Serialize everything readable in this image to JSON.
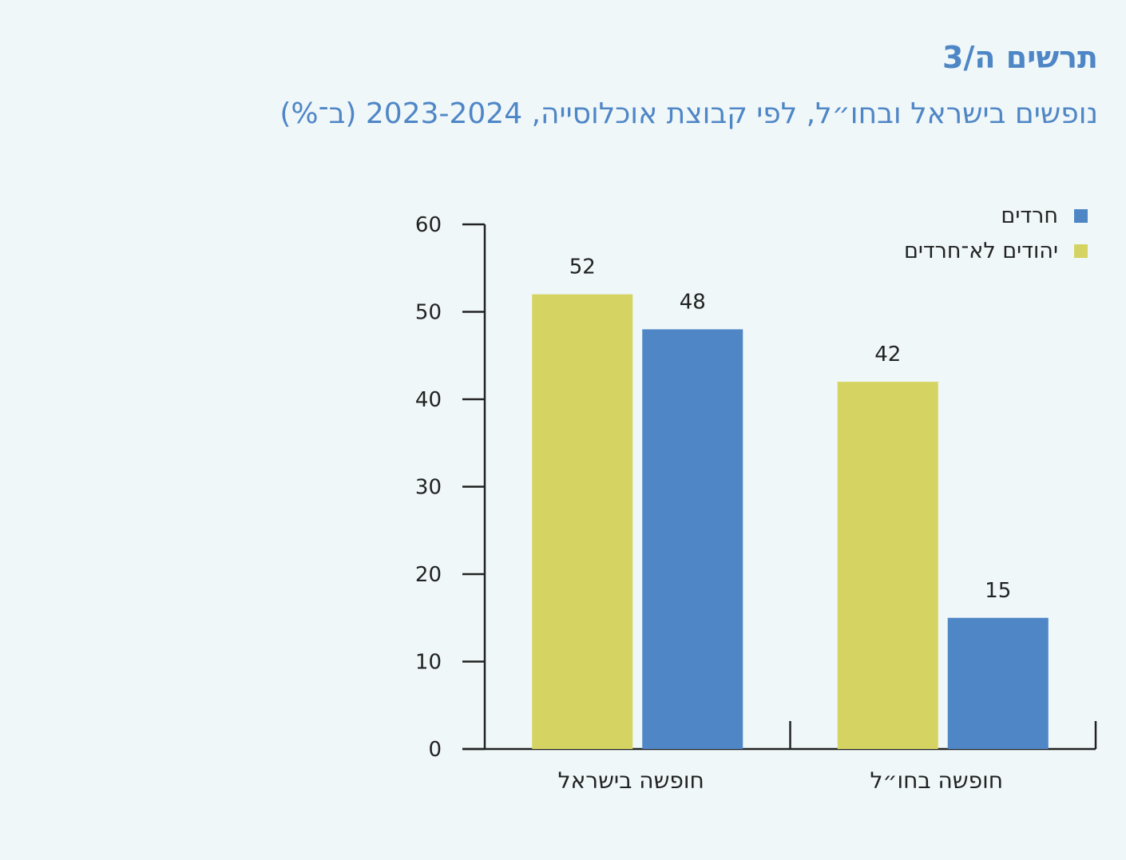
{
  "chart_data": {
    "type": "bar",
    "title": "תרשים ה/3",
    "subtitle": "נופשים בישראל ובחו״ל, לפי קבוצת אוכלוסייה, 2023-2024 (ב־%)",
    "categories": [
      "חופשה בישראל",
      "חופשה בחו״ל"
    ],
    "series": [
      {
        "name": "יהודים לא־חרדים",
        "color": "#d5d462",
        "values": [
          52,
          42
        ]
      },
      {
        "name": "חרדים",
        "color": "#4f86c6",
        "values": [
          48,
          15
        ]
      }
    ],
    "legend_order": [
      "חרדים",
      "יהודים לא־חרדים"
    ],
    "yticks": [
      "0",
      "10",
      "20",
      "30",
      "40",
      "50",
      "60"
    ],
    "ylim": [
      0,
      60
    ],
    "xlabel": "",
    "ylabel": "",
    "grid": false,
    "legend_position": "top-right"
  }
}
